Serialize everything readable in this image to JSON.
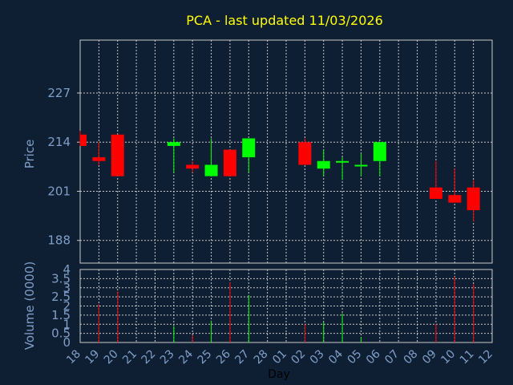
{
  "chart_data": {
    "type": "candlestick",
    "title": "PCA - last updated 11/03/2026",
    "price_axis": {
      "label": "Price",
      "ticks": [
        188,
        201,
        214,
        227
      ],
      "ylim": [
        182,
        241
      ]
    },
    "volume_axis": {
      "label": "Volume (0000)",
      "ticks": [
        "0",
        "0.5",
        "1",
        "1.5",
        "2",
        "2.5",
        "3",
        "3.5",
        "4"
      ],
      "ylim": [
        0,
        4
      ]
    },
    "xlabel": "Day",
    "x_ticks": [
      "18",
      "19",
      "20",
      "21",
      "22",
      "23",
      "24",
      "25",
      "26",
      "27",
      "28",
      "01",
      "02",
      "03",
      "04",
      "05",
      "06",
      "07",
      "08",
      "09",
      "10",
      "11",
      "12"
    ],
    "grid": true,
    "colors": {
      "background": "#0f1f33",
      "up": "#00ff00",
      "down": "#ff0000",
      "grid": "#c8c8c8",
      "title": "#ffff00",
      "axis_text": "#7f9fc8"
    },
    "candles": [
      {
        "d": "18",
        "o": 216,
        "h": 217,
        "l": 213,
        "c": 213
      },
      {
        "d": "19",
        "o": 210,
        "h": 214,
        "l": 208,
        "c": 209
      },
      {
        "d": "20",
        "o": 216,
        "h": 216,
        "l": 205,
        "c": 205
      },
      {
        "d": "23",
        "o": 213,
        "h": 215,
        "l": 206,
        "c": 214
      },
      {
        "d": "24",
        "o": 208,
        "h": 209,
        "l": 206,
        "c": 207
      },
      {
        "d": "25",
        "o": 205,
        "h": 215,
        "l": 205,
        "c": 208
      },
      {
        "d": "26",
        "o": 212,
        "h": 212,
        "l": 205,
        "c": 205
      },
      {
        "d": "27",
        "o": 210,
        "h": 215,
        "l": 206,
        "c": 215
      },
      {
        "d": "02",
        "o": 214,
        "h": 215,
        "l": 208,
        "c": 208
      },
      {
        "d": "03",
        "o": 207,
        "h": 212,
        "l": 205,
        "c": 209
      },
      {
        "d": "04",
        "o": 209,
        "h": 210,
        "l": 204,
        "c": 209
      },
      {
        "d": "05",
        "o": 208,
        "h": 211,
        "l": 205,
        "c": 208
      },
      {
        "d": "06",
        "o": 209,
        "h": 214,
        "l": 205,
        "c": 214
      },
      {
        "d": "09",
        "o": 202,
        "h": 209,
        "l": 199,
        "c": 199
      },
      {
        "d": "10",
        "o": 200,
        "h": 207,
        "l": 198,
        "c": 198
      },
      {
        "d": "11",
        "o": 202,
        "h": 204,
        "l": 193,
        "c": 196
      }
    ],
    "volume": [
      {
        "d": "19",
        "v": 2.1,
        "dir": "down"
      },
      {
        "d": "20",
        "v": 2.8,
        "dir": "down"
      },
      {
        "d": "23",
        "v": 0.9,
        "dir": "up"
      },
      {
        "d": "24",
        "v": 0.4,
        "dir": "down"
      },
      {
        "d": "25",
        "v": 1.2,
        "dir": "up"
      },
      {
        "d": "26",
        "v": 3.3,
        "dir": "down"
      },
      {
        "d": "27",
        "v": 2.6,
        "dir": "up"
      },
      {
        "d": "02",
        "v": 1.0,
        "dir": "down"
      },
      {
        "d": "03",
        "v": 1.1,
        "dir": "up"
      },
      {
        "d": "04",
        "v": 1.6,
        "dir": "up"
      },
      {
        "d": "05",
        "v": 0.3,
        "dir": "up"
      },
      {
        "d": "09",
        "v": 1.0,
        "dir": "down"
      },
      {
        "d": "10",
        "v": 3.6,
        "dir": "down"
      },
      {
        "d": "11",
        "v": 3.2,
        "dir": "down"
      }
    ]
  }
}
